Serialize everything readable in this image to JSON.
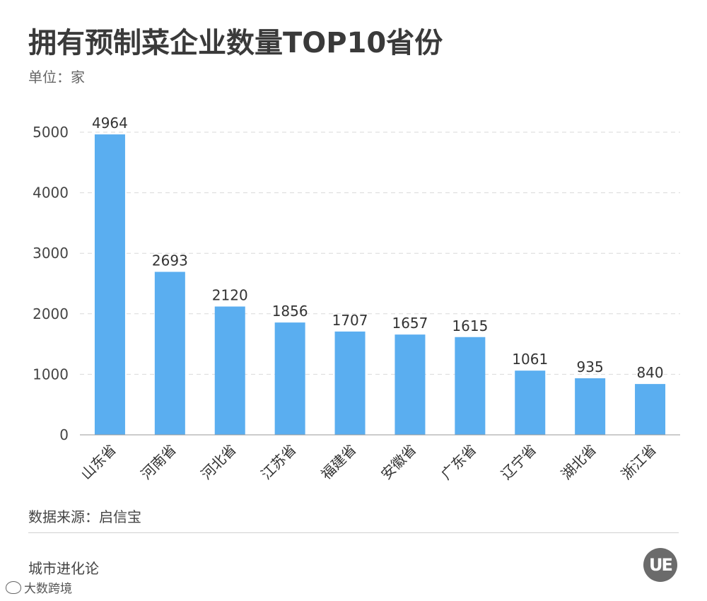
{
  "header": {
    "title": "拥有预制菜企业数量TOP10省份",
    "unit": "单位：家"
  },
  "footer": {
    "source": "数据来源：启信宝",
    "brand": "城市进化论",
    "logo_text": "UE",
    "weibo_handle": "大数跨境"
  },
  "colors": {
    "bar": "#5aaef0",
    "grid": "#d9d9d9",
    "axis": "#999999"
  },
  "chart_data": {
    "type": "bar",
    "title": "拥有预制菜企业数量TOP10省份",
    "categories": [
      "山东省",
      "河南省",
      "河北省",
      "江苏省",
      "福建省",
      "安徽省",
      "广东省",
      "辽宁省",
      "湖北省",
      "浙江省"
    ],
    "values": [
      4964,
      2693,
      2120,
      1856,
      1707,
      1657,
      1615,
      1061,
      935,
      840
    ],
    "yticks": [
      "0",
      "1000",
      "2000",
      "3000",
      "4000",
      "5000"
    ],
    "ylim": [
      0,
      5000
    ],
    "grid": true,
    "legend": "none"
  }
}
